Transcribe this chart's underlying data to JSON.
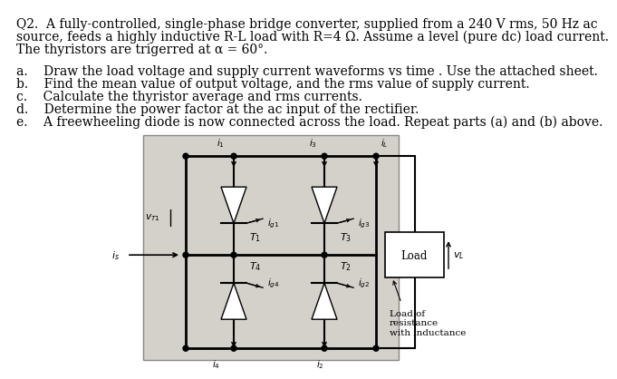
{
  "background_color": "#ffffff",
  "question_line1": "Q2.  A fully-controlled, single-phase bridge converter, supplied from a 240 V rms, 50 Hz ac",
  "question_line2": "source, feeds a highly inductive R-L load with R=4 Ω. Assume a level (pure dc) load current.",
  "question_line3": "The thyristors are trigerred at α = 60°.",
  "items": [
    "a.    Draw the load voltage and supply current waveforms vs time . Use the attached sheet.",
    "b.    Find the mean value of output voltage, and the rms value of supply current.",
    "c.    Calculate the thyristor average and rms currents.",
    "d.    Determine the power factor at the ac input of the rectifier.",
    "e.    A freewheeling diode is now connected across the load. Repeat parts (a) and (b) above."
  ],
  "text_color": "#000000",
  "body_fontsize": 10.0,
  "item_fontsize": 10.0
}
